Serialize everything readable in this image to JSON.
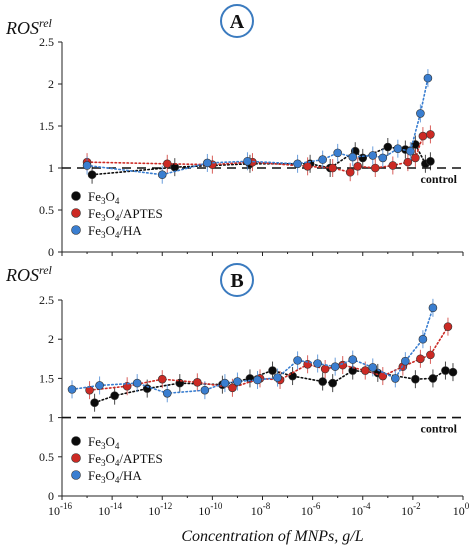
{
  "figure": {
    "xlabel": "Concentration of MNPs, g/L",
    "ylabel_base": "ROS",
    "ylabel_sup": "rel",
    "control_label": "control",
    "control_value": 1.0
  },
  "legend": [
    {
      "parts": [
        "Fe",
        "3",
        "O",
        "4"
      ],
      "color": "#0b0b0b"
    },
    {
      "parts": [
        "Fe",
        "3",
        "O",
        "4",
        "/APTES"
      ],
      "color": "#cc2a24"
    },
    {
      "parts": [
        "Fe",
        "3",
        "O",
        "4",
        "/HA"
      ],
      "color": "#3a7ed0"
    }
  ],
  "chart_data": [
    {
      "panel": "A",
      "type": "scatter",
      "xscale": "log",
      "xlim_exp": [
        -16,
        0
      ],
      "ylim": [
        0,
        2.5
      ],
      "yticks": [
        0,
        0.5,
        1,
        1.5,
        2,
        2.5
      ],
      "legend_placement": "bottom-left",
      "series": [
        {
          "name": "Fe3O4",
          "color": "#0b0b0b",
          "x_exp": [
            -14.8,
            -11.5,
            -8.5,
            -6.1,
            -5.3,
            -4.3,
            -4.0,
            -3.0,
            -2.3,
            -1.9,
            -1.5,
            -1.3
          ],
          "y": [
            0.92,
            1.01,
            1.05,
            1.05,
            1.0,
            1.2,
            1.12,
            1.25,
            1.22,
            1.28,
            1.05,
            1.08
          ]
        },
        {
          "name": "Fe3O4/APTES",
          "color": "#cc2a24",
          "x_exp": [
            -15.0,
            -11.8,
            -10.0,
            -8.4,
            -6.2,
            -5.2,
            -4.5,
            -4.2,
            -3.5,
            -2.8,
            -2.2,
            -1.9,
            -1.6,
            -1.3
          ],
          "y": [
            1.07,
            1.05,
            1.04,
            1.07,
            1.02,
            1.0,
            0.95,
            1.02,
            1.0,
            1.03,
            1.07,
            1.12,
            1.38,
            1.4
          ]
        },
        {
          "name": "Fe3O4/HA",
          "color": "#3a7ed0",
          "x_exp": [
            -15.0,
            -12.0,
            -10.2,
            -8.6,
            -6.6,
            -5.6,
            -5.0,
            -4.4,
            -3.6,
            -3.2,
            -2.6,
            -2.1,
            -1.7,
            -1.4
          ],
          "y": [
            1.03,
            0.92,
            1.06,
            1.08,
            1.05,
            1.1,
            1.18,
            1.13,
            1.15,
            1.12,
            1.23,
            1.2,
            1.65,
            2.07
          ]
        }
      ]
    },
    {
      "panel": "B",
      "type": "scatter",
      "xscale": "log",
      "xlim_exp": [
        -16,
        0
      ],
      "xtick_exps": [
        -16,
        -14,
        -12,
        -10,
        -8,
        -6,
        -4,
        -2,
        0
      ],
      "ylim": [
        0,
        2.5
      ],
      "yticks": [
        0,
        0.5,
        1,
        1.5,
        2,
        2.5
      ],
      "legend_placement": "bottom-left",
      "series": [
        {
          "name": "Fe3O4",
          "color": "#0b0b0b",
          "x_exp": [
            -14.7,
            -13.9,
            -12.6,
            -11.3,
            -9.6,
            -8.5,
            -7.6,
            -6.8,
            -5.6,
            -5.2,
            -4.4,
            -3.4,
            -1.9,
            -1.2,
            -0.7,
            -0.4
          ],
          "y": [
            1.19,
            1.28,
            1.37,
            1.44,
            1.42,
            1.5,
            1.6,
            1.53,
            1.46,
            1.44,
            1.6,
            1.57,
            1.49,
            1.5,
            1.6,
            1.58
          ]
        },
        {
          "name": "Fe3O4/APTES",
          "color": "#cc2a24",
          "x_exp": [
            -14.9,
            -13.4,
            -12.0,
            -10.6,
            -9.2,
            -8.1,
            -7.3,
            -6.2,
            -5.5,
            -4.8,
            -3.9,
            -3.2,
            -2.4,
            -1.7,
            -1.3,
            -0.6
          ],
          "y": [
            1.35,
            1.4,
            1.49,
            1.45,
            1.38,
            1.5,
            1.48,
            1.68,
            1.62,
            1.67,
            1.6,
            1.53,
            1.65,
            1.75,
            1.8,
            2.16
          ]
        },
        {
          "name": "Fe3O4/HA",
          "color": "#3a7ed0",
          "x_exp": [
            -15.6,
            -14.5,
            -13.0,
            -11.8,
            -10.3,
            -9.5,
            -9.0,
            -8.2,
            -7.4,
            -6.6,
            -5.8,
            -5.1,
            -4.4,
            -3.6,
            -2.7,
            -2.3,
            -1.6,
            -1.2
          ],
          "y": [
            1.36,
            1.41,
            1.44,
            1.31,
            1.35,
            1.44,
            1.46,
            1.48,
            1.51,
            1.73,
            1.69,
            1.65,
            1.74,
            1.64,
            1.5,
            1.72,
            2.0,
            2.4
          ]
        }
      ]
    }
  ]
}
